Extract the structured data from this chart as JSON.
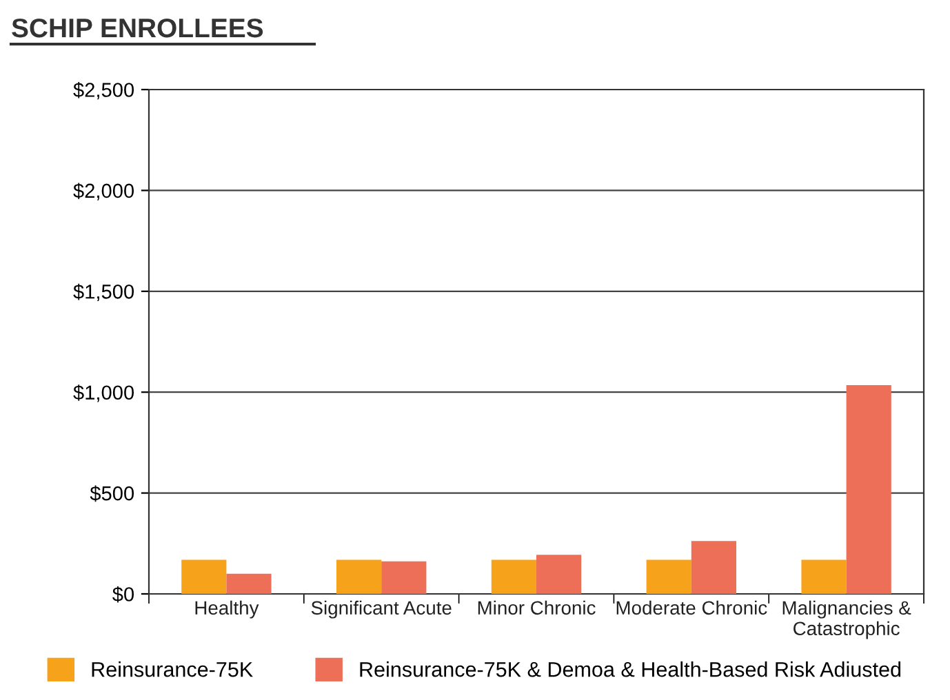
{
  "chart_data": {
    "type": "bar",
    "title": "SCHIP ENROLLEES",
    "categories": [
      "Healthy",
      "Significant Acute",
      "Minor Chronic",
      "Moderate Chronic",
      "Malignancies &\nCatastrophic"
    ],
    "series": [
      {
        "name": "Reinsurance-75K",
        "color": "#f7a21b",
        "values": [
          169,
          169,
          169,
          169,
          169
        ]
      },
      {
        "name": "Reinsurance-75K & Demoa & Health-Based Risk Adiusted",
        "color": "#ee6f58",
        "values": [
          100,
          161,
          194,
          262,
          1035
        ]
      }
    ],
    "ylim": [
      0,
      2500
    ],
    "yticks": [
      {
        "value": 0,
        "label": "$0"
      },
      {
        "value": 500,
        "label": "$500"
      },
      {
        "value": 1000,
        "label": "$1,000"
      },
      {
        "value": 1500,
        "label": "$1,500"
      },
      {
        "value": 2000,
        "label": "$2,000"
      },
      {
        "value": 2500,
        "label": "$2,500"
      }
    ],
    "grid": "y",
    "legend": "bottom"
  }
}
